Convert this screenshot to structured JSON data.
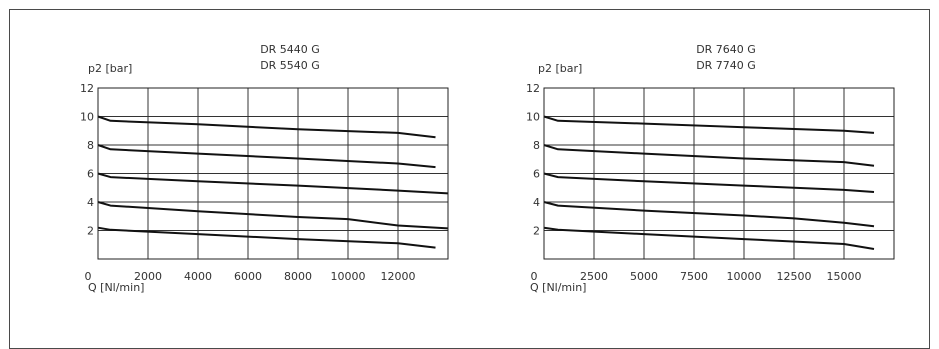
{
  "chart_data": [
    {
      "type": "line",
      "title_lines": [
        "DR 5440 G",
        "DR 5540 G"
      ],
      "ylabel": "p2 [bar]",
      "xlabel": "Q [Nl/min]",
      "xlim": [
        0,
        14000
      ],
      "ylim": [
        0,
        12
      ],
      "xticks": [
        0,
        2000,
        4000,
        6000,
        8000,
        10000,
        12000
      ],
      "yticks": [
        2,
        4,
        6,
        8,
        10,
        12
      ],
      "x_label_zero": "0",
      "grid": true,
      "series": [
        {
          "x": [
            0,
            500,
            4000,
            8000,
            12000,
            13500
          ],
          "y": [
            10,
            9.7,
            9.45,
            9.1,
            8.85,
            8.55
          ]
        },
        {
          "x": [
            0,
            500,
            4000,
            8000,
            12000,
            13500
          ],
          "y": [
            8,
            7.7,
            7.4,
            7.05,
            6.7,
            6.45
          ]
        },
        {
          "x": [
            0,
            500,
            4000,
            8000,
            12000,
            14000
          ],
          "y": [
            6,
            5.75,
            5.45,
            5.15,
            4.8,
            4.6
          ]
        },
        {
          "x": [
            0,
            500,
            4000,
            8000,
            10000,
            12000,
            14000
          ],
          "y": [
            4,
            3.75,
            3.35,
            2.95,
            2.8,
            2.35,
            2.15
          ]
        },
        {
          "x": [
            0,
            500,
            4000,
            8000,
            12000,
            13500
          ],
          "y": [
            2.2,
            2.05,
            1.75,
            1.4,
            1.1,
            0.8
          ]
        }
      ]
    },
    {
      "type": "line",
      "title_lines": [
        "DR 7640 G",
        "DR 7740 G"
      ],
      "ylabel": "p2 [bar]",
      "xlabel": "Q [Nl/min]",
      "xlim": [
        0,
        17500
      ],
      "ylim": [
        0,
        12
      ],
      "xticks": [
        0,
        2500,
        5000,
        7500,
        10000,
        12500,
        15000
      ],
      "yticks": [
        2,
        4,
        6,
        8,
        10,
        12
      ],
      "x_label_zero": "0",
      "grid": true,
      "series": [
        {
          "x": [
            0,
            700,
            5000,
            10000,
            15000,
            16500
          ],
          "y": [
            10,
            9.7,
            9.5,
            9.25,
            9.0,
            8.85
          ]
        },
        {
          "x": [
            0,
            700,
            5000,
            10000,
            15000,
            16500
          ],
          "y": [
            8,
            7.7,
            7.4,
            7.05,
            6.8,
            6.55
          ]
        },
        {
          "x": [
            0,
            700,
            5000,
            10000,
            15000,
            16500
          ],
          "y": [
            6,
            5.75,
            5.45,
            5.15,
            4.85,
            4.7
          ]
        },
        {
          "x": [
            0,
            700,
            5000,
            10000,
            12500,
            15000,
            16500
          ],
          "y": [
            4,
            3.75,
            3.4,
            3.05,
            2.85,
            2.55,
            2.3
          ]
        },
        {
          "x": [
            0,
            700,
            5000,
            10000,
            15000,
            16500
          ],
          "y": [
            2.2,
            2.05,
            1.75,
            1.4,
            1.05,
            0.7
          ]
        }
      ]
    }
  ]
}
